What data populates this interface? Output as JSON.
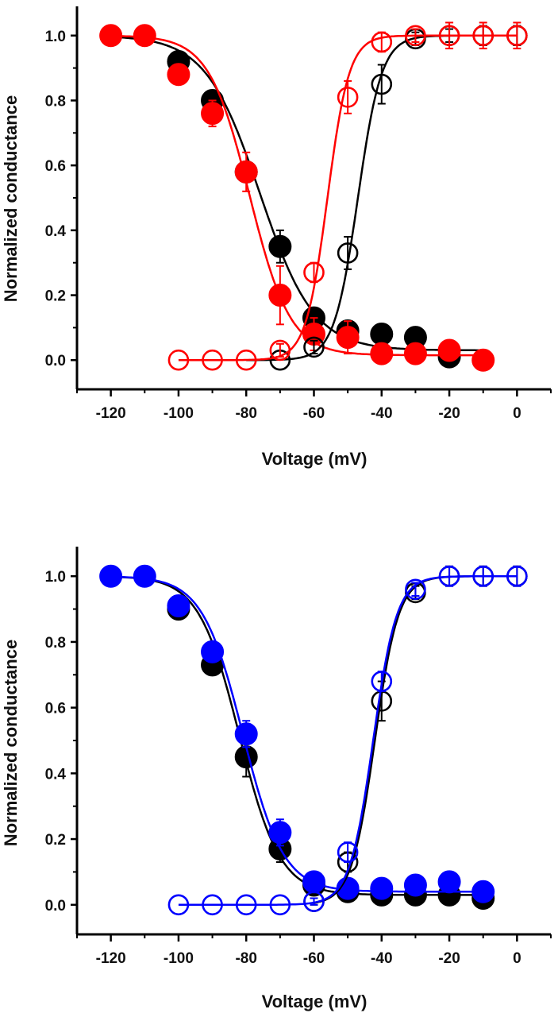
{
  "chart_data": [
    {
      "type": "scatter",
      "xlabel": "Voltage (mV)",
      "ylabel": "Normalized conductance",
      "xlim": [
        -130,
        10
      ],
      "ylim": [
        -0.09,
        1.09
      ],
      "xticks": [
        -120,
        -100,
        -80,
        -60,
        -40,
        -20,
        0
      ],
      "yticks": [
        0.0,
        0.2,
        0.4,
        0.6,
        0.8,
        1.0
      ],
      "xtick_labels": [
        "-120",
        "-100",
        "-80",
        "-60",
        "-40",
        "-20",
        "0"
      ],
      "ytick_labels": [
        "0.0",
        "0.2",
        "0.4",
        "0.6",
        "0.8",
        "1.0"
      ],
      "grid": false,
      "series": [
        {
          "color": "#000000",
          "marker": "filled-circle",
          "fit": "boltzmann-inactivation",
          "x": [
            -100,
            -90,
            -80,
            -70,
            -60,
            -50,
            -40,
            -30,
            -20
          ],
          "y": [
            0.92,
            0.8,
            0.58,
            0.35,
            0.13,
            0.09,
            0.08,
            0.07,
            0.01
          ],
          "err": [
            0.02,
            0.02,
            0.03,
            0.05,
            0.03,
            0.02,
            0.01,
            0.01,
            0.01
          ],
          "fit_params": {
            "v_half": -76,
            "k": 8,
            "bottom": 0.03,
            "x_range": [
              -120,
              -10
            ]
          }
        },
        {
          "color": "#ff0000",
          "marker": "filled-circle",
          "fit": "boltzmann-inactivation",
          "x": [
            -120,
            -110,
            -100,
            -90,
            -80,
            -70,
            -60,
            -50,
            -40,
            -30,
            -20,
            -10
          ],
          "y": [
            1.0,
            1.0,
            0.88,
            0.76,
            0.58,
            0.2,
            0.08,
            0.07,
            0.02,
            0.02,
            0.03,
            0.0
          ],
          "err": [
            0.0,
            0.0,
            0.02,
            0.04,
            0.06,
            0.09,
            0.05,
            0.05,
            0.01,
            0.01,
            0.01,
            0.0
          ],
          "fit_params": {
            "v_half": -79,
            "k": 6,
            "bottom": 0.015,
            "x_range": [
              -120,
              -10
            ]
          }
        },
        {
          "color": "#000000",
          "marker": "open-circle",
          "fit": "boltzmann-activation",
          "x": [
            -70,
            -60,
            -50,
            -40,
            -30,
            -20,
            -10,
            0
          ],
          "y": [
            0.0,
            0.04,
            0.33,
            0.85,
            0.99,
            1.0,
            1.0,
            1.0
          ],
          "err": [
            0.0,
            0.02,
            0.05,
            0.06,
            0.02,
            0.02,
            0.03,
            0.03
          ],
          "fit_params": {
            "v_half": -47,
            "k": 3.5,
            "bottom": 0.0,
            "x_range": [
              -80,
              0
            ]
          }
        },
        {
          "color": "#ff0000",
          "marker": "open-circle",
          "fit": "boltzmann-activation",
          "x": [
            -100,
            -90,
            -80,
            -70,
            -60,
            -50,
            -40,
            -30,
            -20,
            -10,
            0
          ],
          "y": [
            0.0,
            0.0,
            0.0,
            0.03,
            0.27,
            0.81,
            0.98,
            1.0,
            1.0,
            1.0,
            1.0
          ],
          "err": [
            0.0,
            0.0,
            0.0,
            0.02,
            0.03,
            0.05,
            0.03,
            0.02,
            0.04,
            0.04,
            0.04
          ],
          "fit_params": {
            "v_half": -56,
            "k": 3.2,
            "bottom": 0.0,
            "x_range": [
              -100,
              0
            ]
          }
        }
      ]
    },
    {
      "type": "scatter",
      "xlabel": "Voltage (mV)",
      "ylabel": "Normalized conductance",
      "xlim": [
        -130,
        10
      ],
      "ylim": [
        -0.09,
        1.09
      ],
      "xticks": [
        -120,
        -100,
        -80,
        -60,
        -40,
        -20,
        0
      ],
      "yticks": [
        0.0,
        0.2,
        0.4,
        0.6,
        0.8,
        1.0
      ],
      "xtick_labels": [
        "-120",
        "-100",
        "-80",
        "-60",
        "-40",
        "-20",
        "0"
      ],
      "ytick_labels": [
        "0.0",
        "0.2",
        "0.4",
        "0.6",
        "0.8",
        "1.0"
      ],
      "grid": false,
      "series": [
        {
          "color": "#000000",
          "marker": "filled-circle",
          "fit": "boltzmann-inactivation",
          "x": [
            -100,
            -90,
            -80,
            -70,
            -60,
            -50,
            -40,
            -30,
            -20,
            -10
          ],
          "y": [
            0.9,
            0.73,
            0.45,
            0.17,
            0.06,
            0.04,
            0.03,
            0.03,
            0.03,
            0.02
          ],
          "err": [
            0.01,
            0.03,
            0.06,
            0.04,
            0.02,
            0.01,
            0.01,
            0.01,
            0.01,
            0.01
          ],
          "fit_params": {
            "v_half": -82,
            "k": 6,
            "bottom": 0.03,
            "x_range": [
              -120,
              -10
            ]
          }
        },
        {
          "color": "#0000ff",
          "marker": "filled-circle",
          "fit": "boltzmann-inactivation",
          "x": [
            -120,
            -110,
            -100,
            -90,
            -80,
            -70,
            -60,
            -50,
            -40,
            -30,
            -20,
            -10
          ],
          "y": [
            1.0,
            1.0,
            0.91,
            0.77,
            0.52,
            0.22,
            0.07,
            0.05,
            0.05,
            0.06,
            0.07,
            0.04
          ],
          "err": [
            0.0,
            0.0,
            0.01,
            0.02,
            0.04,
            0.04,
            0.02,
            0.01,
            0.01,
            0.01,
            0.02,
            0.01
          ],
          "fit_params": {
            "v_half": -81,
            "k": 6,
            "bottom": 0.04,
            "x_range": [
              -120,
              -10
            ]
          }
        },
        {
          "color": "#000000",
          "marker": "open-circle",
          "fit": "boltzmann-activation",
          "x": [
            -60,
            -50,
            -40,
            -30,
            -20,
            -10,
            0
          ],
          "y": [
            0.01,
            0.13,
            0.62,
            0.95,
            1.0,
            1.0,
            1.0
          ],
          "err": [
            0.01,
            0.03,
            0.06,
            0.02,
            0.03,
            0.03,
            0.03
          ],
          "fit_params": {
            "v_half": -42,
            "k": 3.5,
            "bottom": 0.0,
            "x_range": [
              -60,
              0
            ]
          }
        },
        {
          "color": "#0000ff",
          "marker": "open-circle",
          "fit": "boltzmann-activation",
          "x": [
            -100,
            -90,
            -80,
            -70,
            -60,
            -50,
            -40,
            -30,
            -20,
            -10,
            0
          ],
          "y": [
            0.0,
            0.0,
            0.0,
            0.0,
            0.01,
            0.16,
            0.68,
            0.96,
            1.0,
            1.0,
            1.0
          ],
          "err": [
            0.0,
            0.0,
            0.0,
            0.0,
            0.01,
            0.03,
            0.03,
            0.02,
            0.03,
            0.03,
            0.03
          ],
          "fit_params": {
            "v_half": -42.5,
            "k": 3.5,
            "bottom": 0.0,
            "x_range": [
              -100,
              0
            ]
          }
        }
      ]
    }
  ]
}
